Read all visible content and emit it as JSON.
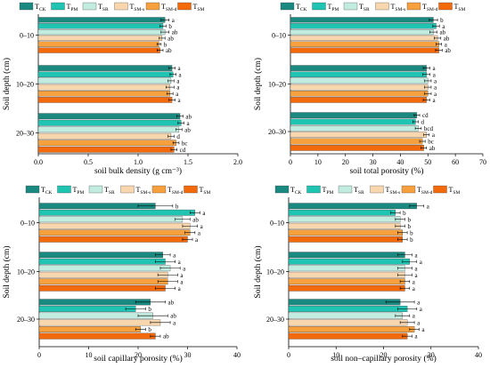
{
  "legend": [
    {
      "key": "CK",
      "label": "T",
      "sub": "CK",
      "color": "#1a8a80"
    },
    {
      "key": "PM",
      "label": "T",
      "sub": "PM",
      "color": "#20c4b2"
    },
    {
      "key": "SR",
      "label": "T",
      "sub": "SR",
      "color": "#c2ece0"
    },
    {
      "key": "SMs",
      "label": "T",
      "sub": "SM-s",
      "color": "#f9d7ae"
    },
    {
      "key": "SMd",
      "label": "T",
      "sub": "SM-d",
      "color": "#f6a03e"
    },
    {
      "key": "SM",
      "label": "T",
      "sub": "SM",
      "color": "#f36a0c"
    }
  ],
  "chart_data": [
    {
      "type": "bar",
      "orientation": "horizontal",
      "title": "",
      "xlabel": "soil bulk density (g cm⁻³)",
      "ylabel": "Soil depth (cm)",
      "xlim": [
        0.0,
        2.0
      ],
      "xticks": [
        "0.0",
        "0.5",
        "1.0",
        "1.5",
        "2.0"
      ],
      "categories": [
        "0–10",
        "10–20",
        "20–30"
      ],
      "series": [
        {
          "name": "T CK",
          "values": [
            1.27,
            1.34,
            1.42
          ],
          "errors": [
            0.04,
            0.03,
            0.03
          ],
          "labels": [
            "a",
            "a",
            "ab"
          ]
        },
        {
          "name": "T PM",
          "values": [
            1.25,
            1.35,
            1.43
          ],
          "errors": [
            0.03,
            0.03,
            0.03
          ],
          "labels": [
            "b",
            "a",
            "a"
          ]
        },
        {
          "name": "T SR",
          "values": [
            1.27,
            1.33,
            1.41
          ],
          "errors": [
            0.04,
            0.03,
            0.03
          ],
          "labels": [
            "ab",
            "a",
            "ab"
          ]
        },
        {
          "name": "T SM-s",
          "values": [
            1.24,
            1.32,
            1.33
          ],
          "errors": [
            0.03,
            0.04,
            0.03
          ],
          "labels": [
            "ab",
            "a",
            "d"
          ]
        },
        {
          "name": "T SM-d",
          "values": [
            1.21,
            1.32,
            1.38
          ],
          "errors": [
            0.02,
            0.03,
            0.03
          ],
          "labels": [
            "b",
            "a",
            "bc"
          ]
        },
        {
          "name": "T SM",
          "values": [
            1.22,
            1.34,
            1.36
          ],
          "errors": [
            0.03,
            0.03,
            0.03
          ],
          "labels": [
            "ab",
            "a",
            "cd"
          ]
        }
      ]
    },
    {
      "type": "bar",
      "orientation": "horizontal",
      "title": "",
      "xlabel": "soil total porosity (%)",
      "ylabel": "Soil depth (cm)",
      "xlim": [
        0,
        70
      ],
      "xticks": [
        "0",
        "10",
        "20",
        "30",
        "40",
        "50",
        "60",
        "70"
      ],
      "categories": [
        "0–10",
        "10–20",
        "20–30"
      ],
      "series": [
        {
          "name": "T CK",
          "values": [
            52.0,
            49.5,
            46.0
          ],
          "errors": [
            1.5,
            1.2,
            1.0
          ],
          "labels": [
            "b",
            "a",
            "cd"
          ]
        },
        {
          "name": "T PM",
          "values": [
            53.0,
            49.5,
            45.5
          ],
          "errors": [
            1.2,
            1.3,
            1.0
          ],
          "labels": [
            "a",
            "a",
            "d"
          ]
        },
        {
          "name": "T SR",
          "values": [
            52.0,
            50.0,
            46.5
          ],
          "errors": [
            1.3,
            1.2,
            1.1
          ],
          "labels": [
            "ab",
            "a",
            "bcd"
          ]
        },
        {
          "name": "T SM-s",
          "values": [
            53.5,
            50.0,
            49.5
          ],
          "errors": [
            1.2,
            1.2,
            1.0
          ],
          "labels": [
            "ab",
            "a",
            "a"
          ]
        },
        {
          "name": "T SM-d",
          "values": [
            54.0,
            50.0,
            48.0
          ],
          "errors": [
            1.0,
            1.2,
            1.0
          ],
          "labels": [
            "a",
            "a",
            "bc"
          ]
        },
        {
          "name": "T SM",
          "values": [
            54.0,
            49.5,
            48.5
          ],
          "errors": [
            1.2,
            1.2,
            1.0
          ],
          "labels": [
            "ab",
            "a",
            "ab"
          ]
        }
      ]
    },
    {
      "type": "bar",
      "orientation": "horizontal",
      "title": "",
      "xlabel": "soil capillary porosity (%)",
      "ylabel": "Soil depth (cm)",
      "xlim": [
        0,
        40
      ],
      "xticks": [
        "0",
        "10",
        "20",
        "30",
        "40"
      ],
      "categories": [
        "0–10",
        "10–20",
        "20–30"
      ],
      "series": [
        {
          "name": "T CK",
          "values": [
            23.5,
            25.0,
            22.5
          ],
          "errors": [
            3.5,
            1.5,
            3.0
          ],
          "labels": [
            "b",
            "a",
            "ab"
          ]
        },
        {
          "name": "T PM",
          "values": [
            31.5,
            25.5,
            19.5
          ],
          "errors": [
            1.0,
            2.0,
            2.0
          ],
          "labels": [
            "a",
            "a",
            "b"
          ]
        },
        {
          "name": "T SR",
          "values": [
            29.0,
            26.5,
            23.0
          ],
          "errors": [
            1.5,
            2.0,
            3.0
          ],
          "labels": [
            "ab",
            "a",
            "ab"
          ]
        },
        {
          "name": "T SM-s",
          "values": [
            30.5,
            26.0,
            24.5
          ],
          "errors": [
            1.5,
            2.0,
            2.0
          ],
          "labels": [
            "a",
            "a",
            "a"
          ]
        },
        {
          "name": "T SM-d",
          "values": [
            30.5,
            26.0,
            20.5
          ],
          "errors": [
            1.0,
            2.0,
            1.0
          ],
          "labels": [
            "a",
            "a",
            "b"
          ]
        },
        {
          "name": "T SM",
          "values": [
            30.0,
            25.5,
            23.5
          ],
          "errors": [
            1.0,
            2.0,
            1.0
          ],
          "labels": [
            "a",
            "a",
            "ab"
          ]
        }
      ]
    },
    {
      "type": "bar",
      "orientation": "horizontal",
      "title": "",
      "xlabel": "soil non–capillary porosity (%)",
      "ylabel": "Soil depth (cm)",
      "xlim": [
        0,
        40
      ],
      "xticks": [
        "0",
        "10",
        "20",
        "30",
        "40"
      ],
      "categories": [
        "0–10",
        "10–20",
        "20–30"
      ],
      "series": [
        {
          "name": "T CK",
          "values": [
            27.0,
            24.5,
            23.5
          ],
          "errors": [
            1.5,
            1.5,
            3.0
          ],
          "labels": [
            "a",
            "a",
            "a"
          ]
        },
        {
          "name": "T PM",
          "values": [
            22.5,
            25.5,
            25.0
          ],
          "errors": [
            1.0,
            1.5,
            2.0
          ],
          "labels": [
            "b",
            "a",
            "a"
          ]
        },
        {
          "name": "T SR",
          "values": [
            23.5,
            24.5,
            24.0
          ],
          "errors": [
            1.0,
            1.5,
            1.5
          ],
          "labels": [
            "b",
            "a",
            "a"
          ]
        },
        {
          "name": "T SM-s",
          "values": [
            23.5,
            24.5,
            25.0
          ],
          "errors": [
            1.0,
            1.5,
            1.5
          ],
          "labels": [
            "b",
            "a",
            "a"
          ]
        },
        {
          "name": "T SM-d",
          "values": [
            24.0,
            24.5,
            26.5
          ],
          "errors": [
            1.0,
            1.0,
            1.0
          ],
          "labels": [
            "b",
            "a",
            "a"
          ]
        },
        {
          "name": "T SM",
          "values": [
            24.0,
            24.5,
            25.0
          ],
          "errors": [
            1.0,
            1.0,
            1.0
          ],
          "labels": [
            "b",
            "a",
            "a"
          ]
        }
      ]
    }
  ]
}
